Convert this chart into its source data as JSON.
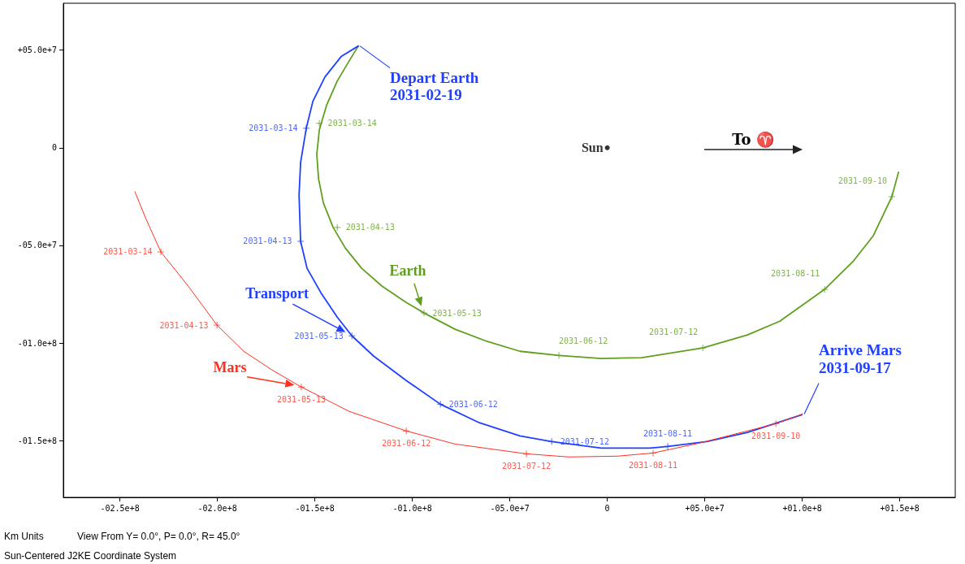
{
  "chart_data": {
    "type": "line",
    "xlim": [
      -279000000.0,
      178500000.0
    ],
    "ylim": [
      -179000000.0,
      74000000.0
    ],
    "xticks": [
      {
        "value": -250000000.0,
        "label": "-02.5e+8"
      },
      {
        "value": -200000000.0,
        "label": "-02.0e+8"
      },
      {
        "value": -150000000.0,
        "label": "-01.5e+8"
      },
      {
        "value": -100000000.0,
        "label": "-01.0e+8"
      },
      {
        "value": -50000000.0,
        "label": "-05.0e+7"
      },
      0,
      {
        "value": 50000000.0,
        "label": "+05.0e+7"
      },
      {
        "value": 100000000.0,
        "label": "+01.0e+8"
      },
      {
        "value": 150000000.0,
        "label": "+01.5e+8"
      }
    ],
    "yticks": [
      {
        "value": 50000000.0,
        "label": "+05.0e+7"
      },
      0,
      {
        "value": -50000000.0,
        "label": "-05.0e+7"
      },
      {
        "value": -100000000.0,
        "label": "-01.0e+8"
      },
      {
        "value": -150000000.0,
        "label": "-01.5e+8"
      }
    ],
    "series": [
      {
        "name": "Earth",
        "color": "#5ea01e",
        "marker": "none",
        "x": [
          -127700000.0,
          -132300000.0,
          -138500000.0,
          -144000000.0,
          -147700000.0,
          -149000000.0,
          -148100000.0,
          -145600000.0,
          -140600000.0,
          -134400000.0,
          -126000000.0,
          -115600000.0,
          -103100000.0,
          -94000000.0,
          -78100000.0,
          -61500000.0,
          -44800000.0,
          -24800000.0,
          -3100000.0,
          17700000.0,
          49000000.0,
          71900000.0,
          88500000.0,
          111500000.0,
          126000000.0,
          136500000.0,
          146000000.0,
          149400000.0
        ],
        "values": [
          52100000.0,
          44600000.0,
          34200000.0,
          21700000.0,
          9200000.0,
          -3300000.0,
          -15800000.0,
          -28300000.0,
          -40800000.0,
          -51300000.0,
          -61700000.0,
          -70800000.0,
          -79200000.0,
          -84600000.0,
          -92900000.0,
          -99200000.0,
          -104200000.0,
          -106300000.0,
          -107900000.0,
          -107500000.0,
          -102500000.0,
          -95800000.0,
          -88800000.0,
          -72500000.0,
          -58300000.0,
          -45000000.0,
          -25000000.0,
          -12500000.0
        ]
      },
      {
        "type": "scatter",
        "color": "#5ea01e",
        "marker": "cross",
        "x": [
          -147700000.0,
          -138500000.0,
          -94000000.0,
          -24800000.0,
          49000000.0,
          111500000.0,
          146000000.0
        ],
        "values": [
          12500000.0,
          -40800000.0,
          -84600000.0,
          -106300000.0,
          -102500000.0,
          -72500000.0,
          -25000000.0
        ],
        "value_labels": [
          "2031-03-14",
          "2031-04-13",
          "2031-05-13",
          "2031-06-12",
          "2031-07-12",
          "2031-08-11",
          "2031-09-10"
        ]
      },
      {
        "name": "Transport",
        "color": "#2040ff",
        "marker": "none",
        "x": [
          -127700000.0,
          -136500000.0,
          -144800000.0,
          -151000000.0,
          -154400000.0,
          -157300000.0,
          -158100000.0,
          -157300000.0,
          -154000000.0,
          -146900000.0,
          -138500000.0,
          -131000000.0,
          -119800000.0,
          -103100000.0,
          -85600000.0,
          -65600000.0,
          -44800000.0,
          -28500000.0,
          -3100000.0,
          21900000.0,
          31000000.0,
          51000000.0,
          71900000.0,
          87300000.0,
          99800000.0
        ],
        "values": [
          52100000.0,
          46700000.0,
          36300000.0,
          23800000.0,
          10000000.0,
          -7500000.0,
          -24200000.0,
          -47900000.0,
          -61700000.0,
          -74200000.0,
          -86700000.0,
          -96300000.0,
          -106700000.0,
          -119200000.0,
          -131300000.0,
          -140800000.0,
          -147500000.0,
          -150400000.0,
          -153800000.0,
          -153800000.0,
          -152900000.0,
          -150400000.0,
          -145800000.0,
          -140800000.0,
          -136700000.0
        ]
      },
      {
        "type": "scatter",
        "color": "#2040ff",
        "marker": "cross",
        "x": [
          -154400000.0,
          -157300000.0,
          -131000000.0,
          -85600000.0,
          -28500000.0,
          31000000.0
        ],
        "values": [
          10000000.0,
          -47900000.0,
          -96300000.0,
          -131300000.0,
          -150400000.0,
          -152900000.0
        ],
        "value_labels": [
          "2031-03-14",
          "2031-04-13",
          "2031-05-13",
          "2031-06-12",
          "2031-07-12",
          "2031-08-11"
        ]
      },
      {
        "name": "Mars",
        "color": "#ff3020",
        "marker": "none",
        "x": [
          -242300000.0,
          -236500000.0,
          -229000000.0,
          -215600000.0,
          -200200000.0,
          -186500000.0,
          -171900000.0,
          -156900000.0,
          -132300000.0,
          -103100000.0,
          -78100000.0,
          -41500000.0,
          -19800000.0,
          5200000.0,
          23500000.0,
          46900000.0,
          71900000.0,
          86500000.0,
          100200000.0
        ],
        "values": [
          -22500000.0,
          -36700000.0,
          -53300000.0,
          -70000000.0,
          -90800000.0,
          -104200000.0,
          -113800000.0,
          -122500000.0,
          -135000000.0,
          -145000000.0,
          -151700000.0,
          -156700000.0,
          -158300000.0,
          -157900000.0,
          -156300000.0,
          -151300000.0,
          -145000000.0,
          -141300000.0,
          -136300000.0
        ]
      },
      {
        "type": "scatter",
        "color": "#ff3020",
        "marker": "cross",
        "x": [
          -229000000.0,
          -200200000.0,
          -156900000.0,
          -103100000.0,
          -41500000.0,
          23500000.0,
          86500000.0
        ],
        "values": [
          -53300000.0,
          -90800000.0,
          -122500000.0,
          -145000000.0,
          -156700000.0,
          -156300000.0,
          -141300000.0
        ],
        "value_labels": [
          "2031-03-14",
          "2031-04-13",
          "2031-05-13",
          "2031-06-12",
          "2031-07-12",
          "2031-08-11",
          "2031-09-10"
        ]
      },
      {
        "name": "Sun",
        "type": "scatter",
        "color": "#000000",
        "marker": "circle",
        "x": [
          0
        ],
        "values": [
          0
        ]
      }
    ],
    "annotations": [
      {
        "text": "Depart Earth\n2031-02-19",
        "x": -127700000.0,
        "y": 52100000.0
      },
      {
        "text": "Arrive Mars\n2031-09-17",
        "x": 100200000.0,
        "y": -136300000.0
      },
      "To ♈",
      "Km Units",
      "View From Y=  0.0°, P=  0.0°, R= 45.0°",
      "Sun-Centered J2KE Coordinate System"
    ]
  }
}
